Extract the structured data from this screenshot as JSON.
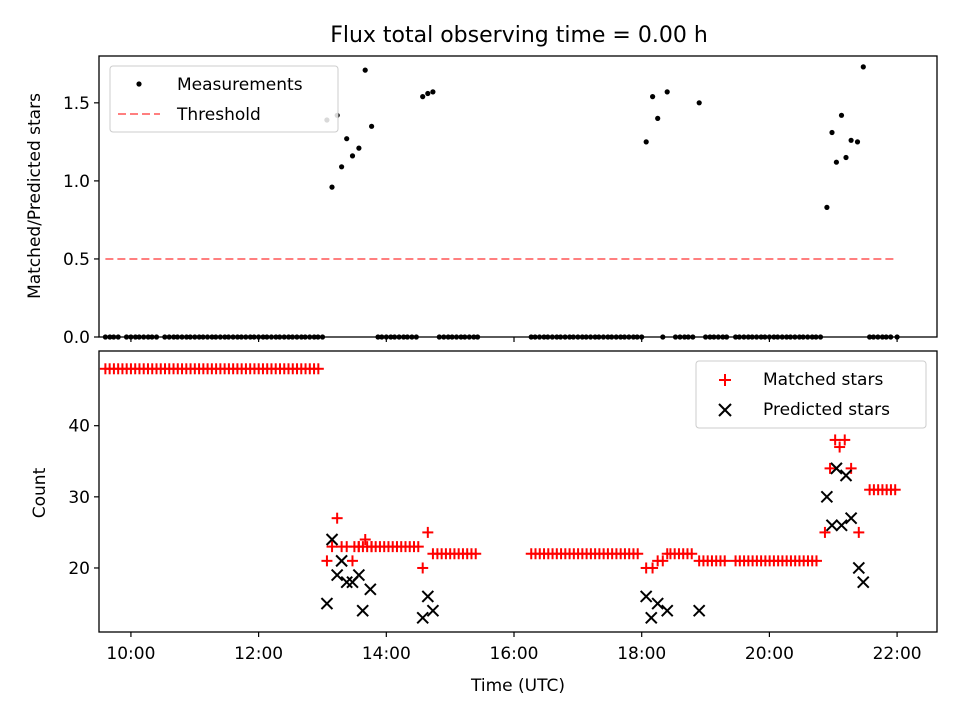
{
  "title": "Flux total observing time = 0.00 h",
  "colors": {
    "measurement": "#000000",
    "threshold": "#ff7f7f",
    "matched": "#ff0000",
    "predicted": "#000000"
  },
  "chart_data": [
    {
      "type": "scatter",
      "ylabel": "Matched/Predicted stars",
      "xlim": [
        9.5,
        22.625
      ],
      "ylim": [
        0,
        1.8
      ],
      "ytick_values": [
        0,
        0.5,
        1.0,
        1.5
      ],
      "ytick_labels": [
        "0.0",
        "0.5",
        "1.0",
        "1.5"
      ],
      "legend": {
        "position": "top-left",
        "entries": [
          "Measurements",
          "Threshold"
        ]
      },
      "threshold": {
        "name": "Threshold",
        "y": 0.5,
        "x_range": [
          9.6,
          22.0
        ]
      },
      "series": [
        {
          "name": "Measurements",
          "points": [
            [
              9.6,
              0
            ],
            [
              9.67,
              0
            ],
            [
              9.73,
              0
            ],
            [
              9.8,
              0
            ],
            [
              9.93,
              0
            ],
            [
              10.0,
              0
            ],
            [
              10.07,
              0
            ],
            [
              10.13,
              0
            ],
            [
              10.2,
              0
            ],
            [
              10.27,
              0
            ],
            [
              10.33,
              0
            ],
            [
              10.4,
              0
            ],
            [
              10.53,
              0
            ],
            [
              10.6,
              0
            ],
            [
              10.67,
              0
            ],
            [
              10.73,
              0
            ],
            [
              10.8,
              0
            ],
            [
              10.87,
              0
            ],
            [
              10.93,
              0
            ],
            [
              11.0,
              0
            ],
            [
              11.07,
              0
            ],
            [
              11.13,
              0
            ],
            [
              11.2,
              0
            ],
            [
              11.27,
              0
            ],
            [
              11.33,
              0
            ],
            [
              11.4,
              0
            ],
            [
              11.47,
              0
            ],
            [
              11.53,
              0
            ],
            [
              11.6,
              0
            ],
            [
              11.67,
              0
            ],
            [
              11.73,
              0
            ],
            [
              11.8,
              0
            ],
            [
              11.87,
              0
            ],
            [
              11.93,
              0
            ],
            [
              12.0,
              0
            ],
            [
              12.07,
              0
            ],
            [
              12.13,
              0
            ],
            [
              12.2,
              0
            ],
            [
              12.27,
              0
            ],
            [
              12.33,
              0
            ],
            [
              12.4,
              0
            ],
            [
              12.47,
              0
            ],
            [
              12.53,
              0
            ],
            [
              12.6,
              0
            ],
            [
              12.67,
              0
            ],
            [
              12.73,
              0
            ],
            [
              12.8,
              0
            ],
            [
              12.87,
              0
            ],
            [
              12.93,
              0
            ],
            [
              13.0,
              0
            ],
            [
              13.07,
              1.39
            ],
            [
              13.15,
              0.96
            ],
            [
              13.23,
              1.42
            ],
            [
              13.3,
              1.09
            ],
            [
              13.38,
              1.27
            ],
            [
              13.47,
              1.16
            ],
            [
              13.57,
              1.21
            ],
            [
              13.67,
              1.71
            ],
            [
              13.77,
              1.35
            ],
            [
              13.87,
              0
            ],
            [
              13.93,
              0
            ],
            [
              14.0,
              0
            ],
            [
              14.07,
              0
            ],
            [
              14.13,
              0
            ],
            [
              14.2,
              0
            ],
            [
              14.27,
              0
            ],
            [
              14.33,
              0
            ],
            [
              14.4,
              0
            ],
            [
              14.47,
              0
            ],
            [
              14.57,
              1.54
            ],
            [
              14.65,
              1.56
            ],
            [
              14.73,
              1.57
            ],
            [
              14.83,
              0
            ],
            [
              14.9,
              0
            ],
            [
              14.97,
              0
            ],
            [
              15.03,
              0
            ],
            [
              15.1,
              0
            ],
            [
              15.17,
              0
            ],
            [
              15.23,
              0
            ],
            [
              15.3,
              0
            ],
            [
              15.37,
              0
            ],
            [
              15.43,
              0
            ],
            [
              16.27,
              0
            ],
            [
              16.33,
              0
            ],
            [
              16.4,
              0
            ],
            [
              16.47,
              0
            ],
            [
              16.53,
              0
            ],
            [
              16.6,
              0
            ],
            [
              16.67,
              0
            ],
            [
              16.73,
              0
            ],
            [
              16.8,
              0
            ],
            [
              16.87,
              0
            ],
            [
              16.93,
              0
            ],
            [
              17.0,
              0
            ],
            [
              17.07,
              0
            ],
            [
              17.13,
              0
            ],
            [
              17.2,
              0
            ],
            [
              17.27,
              0
            ],
            [
              17.33,
              0
            ],
            [
              17.4,
              0
            ],
            [
              17.47,
              0
            ],
            [
              17.53,
              0
            ],
            [
              17.6,
              0
            ],
            [
              17.67,
              0
            ],
            [
              17.73,
              0
            ],
            [
              17.8,
              0
            ],
            [
              17.87,
              0
            ],
            [
              17.93,
              0
            ],
            [
              18.0,
              0
            ],
            [
              18.07,
              1.25
            ],
            [
              18.17,
              1.54
            ],
            [
              18.25,
              1.4
            ],
            [
              18.4,
              1.57
            ],
            [
              18.33,
              0
            ],
            [
              18.53,
              0
            ],
            [
              18.6,
              0
            ],
            [
              18.67,
              0
            ],
            [
              18.73,
              0
            ],
            [
              18.8,
              0
            ],
            [
              18.9,
              1.5
            ],
            [
              19.0,
              0
            ],
            [
              19.07,
              0
            ],
            [
              19.13,
              0
            ],
            [
              19.2,
              0
            ],
            [
              19.27,
              0
            ],
            [
              19.33,
              0
            ],
            [
              19.47,
              0
            ],
            [
              19.53,
              0
            ],
            [
              19.6,
              0
            ],
            [
              19.67,
              0
            ],
            [
              19.73,
              0
            ],
            [
              19.8,
              0
            ],
            [
              19.87,
              0
            ],
            [
              19.93,
              0
            ],
            [
              20.0,
              0
            ],
            [
              20.07,
              0
            ],
            [
              20.13,
              0
            ],
            [
              20.2,
              0
            ],
            [
              20.27,
              0
            ],
            [
              20.33,
              0
            ],
            [
              20.4,
              0
            ],
            [
              20.47,
              0
            ],
            [
              20.53,
              0
            ],
            [
              20.6,
              0
            ],
            [
              20.67,
              0
            ],
            [
              20.73,
              0
            ],
            [
              20.8,
              0
            ],
            [
              20.9,
              0.83
            ],
            [
              20.98,
              1.31
            ],
            [
              21.05,
              1.12
            ],
            [
              21.13,
              1.42
            ],
            [
              21.2,
              1.15
            ],
            [
              21.28,
              1.26
            ],
            [
              21.38,
              1.25
            ],
            [
              21.47,
              1.73
            ],
            [
              21.57,
              0
            ],
            [
              21.63,
              0
            ],
            [
              21.7,
              0
            ],
            [
              21.77,
              0
            ],
            [
              21.83,
              0
            ],
            [
              21.9,
              0
            ],
            [
              22.0,
              0
            ]
          ]
        }
      ]
    },
    {
      "type": "scatter",
      "xlabel": "Time (UTC)",
      "ylabel": "Count",
      "xlim": [
        9.5,
        22.625
      ],
      "ylim": [
        11,
        50.5
      ],
      "xtick_values": [
        10,
        12,
        14,
        16,
        18,
        20,
        22
      ],
      "xtick_labels": [
        "10:00",
        "12:00",
        "14:00",
        "16:00",
        "18:00",
        "20:00",
        "22:00"
      ],
      "ytick_values": [
        20,
        30,
        40
      ],
      "ytick_labels": [
        "20",
        "30",
        "40"
      ],
      "legend": {
        "position": "top-right",
        "entries": [
          "Matched stars",
          "Predicted stars"
        ]
      },
      "series": [
        {
          "name": "Matched stars",
          "segments": [
            {
              "x_start": 9.6,
              "x_end": 13.0,
              "step": 0.0667,
              "y": 48
            },
            {
              "x_start": 13.5,
              "x_end": 14.55,
              "step": 0.0667,
              "y": 23
            },
            {
              "x_start": 14.8,
              "x_end": 15.43,
              "step": 0.0667,
              "y": 22
            },
            {
              "x_start": 16.27,
              "x_end": 18.0,
              "step": 0.0667,
              "y": 22
            },
            {
              "x_start": 18.45,
              "x_end": 18.85,
              "step": 0.0667,
              "y": 22
            },
            {
              "x_start": 18.9,
              "x_end": 19.33,
              "step": 0.0667,
              "y": 21
            },
            {
              "x_start": 19.47,
              "x_end": 20.8,
              "step": 0.0667,
              "y": 21
            },
            {
              "x_start": 21.57,
              "x_end": 22.0,
              "step": 0.0667,
              "y": 31
            }
          ],
          "points": [
            [
              13.07,
              21
            ],
            [
              13.15,
              23
            ],
            [
              13.23,
              27
            ],
            [
              13.3,
              23
            ],
            [
              13.38,
              23
            ],
            [
              13.47,
              21
            ],
            [
              13.57,
              23
            ],
            [
              13.67,
              24
            ],
            [
              13.77,
              23
            ],
            [
              14.57,
              20
            ],
            [
              14.65,
              25
            ],
            [
              14.73,
              22
            ],
            [
              18.07,
              20
            ],
            [
              18.17,
              20
            ],
            [
              18.25,
              21
            ],
            [
              18.33,
              21
            ],
            [
              18.4,
              22
            ],
            [
              20.87,
              25
            ],
            [
              20.95,
              34
            ],
            [
              21.03,
              38
            ],
            [
              21.1,
              37
            ],
            [
              21.18,
              38
            ],
            [
              21.28,
              34
            ],
            [
              21.4,
              25
            ]
          ]
        },
        {
          "name": "Predicted stars",
          "points": [
            [
              13.07,
              15
            ],
            [
              13.15,
              24
            ],
            [
              13.23,
              19
            ],
            [
              13.3,
              21
            ],
            [
              13.38,
              18
            ],
            [
              13.47,
              18
            ],
            [
              13.57,
              19
            ],
            [
              13.63,
              14
            ],
            [
              13.75,
              17
            ],
            [
              14.57,
              13
            ],
            [
              14.65,
              16
            ],
            [
              14.73,
              14
            ],
            [
              18.07,
              16
            ],
            [
              18.15,
              13
            ],
            [
              18.25,
              15
            ],
            [
              18.4,
              14
            ],
            [
              18.9,
              14
            ],
            [
              20.9,
              30
            ],
            [
              20.98,
              26
            ],
            [
              21.05,
              34
            ],
            [
              21.13,
              26
            ],
            [
              21.2,
              33
            ],
            [
              21.28,
              27
            ],
            [
              21.4,
              20
            ],
            [
              21.47,
              18
            ]
          ]
        }
      ]
    }
  ]
}
